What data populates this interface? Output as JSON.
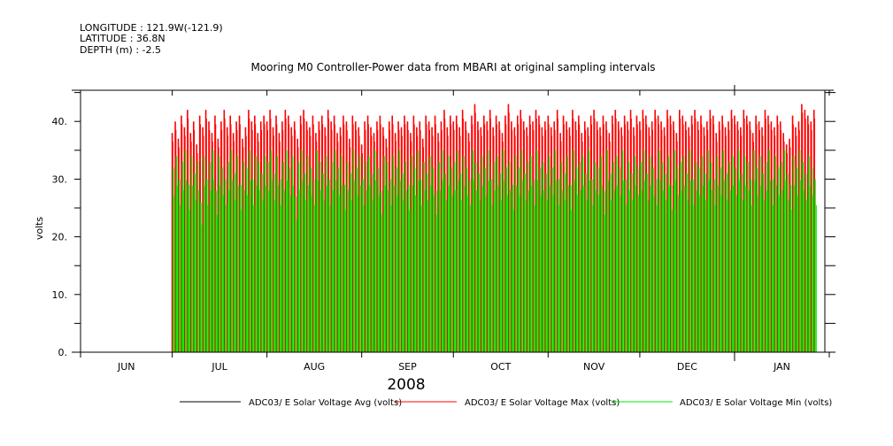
{
  "header": {
    "longitude": "LONGITUDE : 121.9W(-121.9)",
    "latitude": "LATITUDE : 36.8N",
    "depth": "DEPTH (m) : -2.5"
  },
  "chart_data": {
    "type": "bar",
    "title": "Mooring M0 Controller-Power data from MBARI at original sampling intervals",
    "xlabel": "2008",
    "ylabel": "volts",
    "ylim": [
      0,
      45.4
    ],
    "xlim_days_from_jun1": [
      0,
      245
    ],
    "yticks": [
      {
        "v": 0,
        "label": "0."
      },
      {
        "v": 10,
        "label": "10."
      },
      {
        "v": 20,
        "label": "20."
      },
      {
        "v": 30,
        "label": "30."
      },
      {
        "v": 40,
        "label": "40."
      }
    ],
    "month_boundaries_days": [
      0,
      30,
      61,
      92,
      122,
      153,
      183,
      214,
      245
    ],
    "month_labels": [
      "JUN",
      "JUL",
      "AUG",
      "SEP",
      "OCT",
      "NOV",
      "DEC",
      "JAN"
    ],
    "data_start_day": 30,
    "colors": {
      "avg": "#000000",
      "max": "#ff0000",
      "min": "#00ee00"
    },
    "series": [
      {
        "name": "ADC03/ E Solar Voltage Avg (volts)",
        "color": "#000000",
        "values": []
      },
      {
        "name": "ADC03/ E Solar Voltage Max (volts)",
        "color": "#ff0000",
        "values": [
          38,
          40,
          37,
          41,
          39,
          42,
          38,
          40,
          36,
          41,
          39,
          42,
          40,
          38,
          41,
          37,
          40,
          42,
          39,
          41,
          38,
          40,
          41,
          37,
          39,
          42,
          40,
          41,
          38,
          40,
          41,
          40,
          42,
          39,
          41,
          38,
          40,
          42,
          41,
          39,
          40,
          37,
          41,
          42,
          40,
          39,
          41,
          38,
          40,
          41,
          39,
          42,
          40,
          41,
          38,
          39,
          41,
          40,
          37,
          41,
          40,
          39,
          36,
          40,
          41,
          39,
          38,
          40,
          41,
          39,
          37,
          40,
          41,
          38,
          40,
          39,
          41,
          40,
          38,
          41,
          39,
          40,
          37,
          41,
          40,
          39,
          41,
          38,
          40,
          42,
          39,
          41,
          40,
          41,
          39,
          42,
          40,
          38,
          41,
          43,
          40,
          39,
          41,
          40,
          42,
          39,
          41,
          40,
          38,
          41,
          43,
          40,
          39,
          41,
          42,
          40,
          39,
          41,
          40,
          42,
          41,
          39,
          40,
          41,
          39,
          40,
          42,
          38,
          41,
          40,
          39,
          42,
          40,
          41,
          38,
          40,
          39,
          41,
          42,
          40,
          39,
          41,
          40,
          38,
          41,
          42,
          40,
          39,
          41,
          40,
          42,
          39,
          41,
          40,
          42,
          41,
          39,
          40,
          42,
          41,
          40,
          39,
          42,
          41,
          40,
          38,
          42,
          41,
          40,
          39,
          41,
          42,
          40,
          41,
          39,
          40,
          42,
          41,
          38,
          40,
          41,
          39,
          40,
          42,
          41,
          40,
          39,
          42,
          41,
          40,
          38,
          41,
          40,
          39,
          42,
          41,
          40,
          39,
          41,
          40,
          38,
          36,
          37,
          41,
          39,
          40,
          43,
          42,
          41,
          40,
          42
        ]
      },
      {
        "name": "ADC03/ E Solar Voltage Min (volts)",
        "color": "#00ee00",
        "values": [
          32,
          34,
          30,
          33,
          35,
          29,
          34,
          31,
          33,
          26,
          34,
          30,
          33,
          35,
          28,
          34,
          32,
          30,
          33,
          35,
          31,
          34,
          29,
          33,
          32,
          35,
          30,
          34,
          33,
          31,
          34,
          33,
          35,
          31,
          34,
          30,
          33,
          35,
          32,
          34,
          27,
          33,
          35,
          31,
          34,
          32,
          30,
          35,
          33,
          31,
          34,
          30,
          33,
          35,
          32,
          34,
          29,
          33,
          31,
          35,
          32,
          34,
          30,
          33,
          34,
          31,
          35,
          32,
          28,
          34,
          33,
          30,
          34,
          32,
          35,
          31,
          33,
          29,
          34,
          32,
          35,
          30,
          33,
          31,
          34,
          32,
          28,
          33,
          35,
          31,
          34,
          32,
          33,
          35,
          31,
          34,
          32,
          30,
          35,
          33,
          31,
          34,
          32,
          35,
          30,
          33,
          34,
          31,
          35,
          32,
          33,
          29,
          34,
          32,
          35,
          31,
          33,
          34,
          30,
          35,
          32,
          33,
          31,
          34,
          32,
          35,
          30,
          33,
          31,
          34,
          29,
          35,
          32,
          33,
          34,
          31,
          35,
          30,
          33,
          32,
          34,
          28,
          35,
          31,
          33,
          34,
          32,
          35,
          30,
          33,
          31,
          34,
          32,
          33,
          35,
          31,
          34,
          32,
          30,
          35,
          33,
          31,
          34,
          29,
          35,
          32,
          33,
          34,
          31,
          35,
          30,
          33,
          32,
          34,
          31,
          35,
          33,
          30,
          34,
          32,
          35,
          31,
          33,
          34,
          32,
          35,
          31,
          34,
          33,
          30,
          35,
          32,
          34,
          31,
          33,
          35,
          30,
          34,
          32,
          33,
          35,
          31,
          29,
          34,
          32,
          35,
          33,
          31,
          34,
          32,
          30
        ]
      }
    ],
    "legend_placement": "bottom"
  }
}
